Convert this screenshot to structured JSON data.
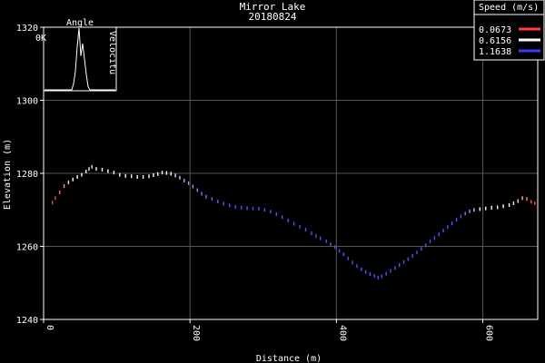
{
  "chart_data": {
    "type": "scatter",
    "title": "Mirror Lake",
    "subtitle": "20180824",
    "xlabel": "Distance (m)",
    "ylabel": "Elevation (m)",
    "xlim": [
      0,
      675
    ],
    "ylim": [
      1240,
      1320
    ],
    "x_ticks": [
      0,
      200,
      400,
      600
    ],
    "y_ticks": [
      1240,
      1260,
      1280,
      1300,
      1320
    ],
    "grid": true,
    "legend": {
      "title": "Speed (m/s)",
      "position": "top-right",
      "entries": [
        {
          "label": "0.0673",
          "color": "#ff3b3b"
        },
        {
          "label": "0.6156",
          "color": "#ffffff"
        },
        {
          "label": "1.1638",
          "color": "#3b3bff"
        }
      ]
    },
    "inset": {
      "title": "Angle",
      "left_label": "0K",
      "right_label": "Velocitu",
      "histogram": [
        0,
        0,
        0,
        0,
        0,
        0,
        0,
        0,
        0,
        0,
        0,
        0,
        0,
        0,
        0,
        0,
        0.1,
        0.3,
        0.7,
        1.0,
        0.55,
        0.75,
        0.5,
        0.25,
        0.05,
        0,
        0,
        0,
        0,
        0,
        0,
        0,
        0,
        0,
        0,
        0,
        0,
        0,
        0,
        0
      ]
    },
    "points": [
      {
        "x": 12,
        "y": 1272.0,
        "s": 0.07
      },
      {
        "x": 16,
        "y": 1273.2,
        "s": 0.1
      },
      {
        "x": 22,
        "y": 1274.8,
        "s": 0.2
      },
      {
        "x": 28,
        "y": 1276.5,
        "s": 0.35
      },
      {
        "x": 34,
        "y": 1277.5,
        "s": 0.5
      },
      {
        "x": 40,
        "y": 1278.3,
        "s": 0.6
      },
      {
        "x": 46,
        "y": 1279.0,
        "s": 0.6
      },
      {
        "x": 52,
        "y": 1279.6,
        "s": 0.62
      },
      {
        "x": 58,
        "y": 1280.5,
        "s": 0.62
      },
      {
        "x": 62,
        "y": 1281.2,
        "s": 0.55
      },
      {
        "x": 66,
        "y": 1281.8,
        "s": 0.5
      },
      {
        "x": 72,
        "y": 1281.2,
        "s": 0.6
      },
      {
        "x": 80,
        "y": 1281.0,
        "s": 0.62
      },
      {
        "x": 88,
        "y": 1280.6,
        "s": 0.62
      },
      {
        "x": 96,
        "y": 1280.2,
        "s": 0.62
      },
      {
        "x": 104,
        "y": 1279.6,
        "s": 0.62
      },
      {
        "x": 112,
        "y": 1279.3,
        "s": 0.62
      },
      {
        "x": 120,
        "y": 1279.2,
        "s": 0.62
      },
      {
        "x": 128,
        "y": 1279.0,
        "s": 0.62
      },
      {
        "x": 136,
        "y": 1279.0,
        "s": 0.62
      },
      {
        "x": 144,
        "y": 1279.2,
        "s": 0.62
      },
      {
        "x": 150,
        "y": 1279.5,
        "s": 0.62
      },
      {
        "x": 156,
        "y": 1279.8,
        "s": 0.62
      },
      {
        "x": 162,
        "y": 1280.2,
        "s": 0.62
      },
      {
        "x": 168,
        "y": 1280.1,
        "s": 0.62
      },
      {
        "x": 174,
        "y": 1279.9,
        "s": 0.62
      },
      {
        "x": 180,
        "y": 1279.4,
        "s": 0.7
      },
      {
        "x": 186,
        "y": 1278.8,
        "s": 0.8
      },
      {
        "x": 192,
        "y": 1278.0,
        "s": 0.85
      },
      {
        "x": 198,
        "y": 1277.3,
        "s": 0.9
      },
      {
        "x": 204,
        "y": 1276.4,
        "s": 0.9
      },
      {
        "x": 210,
        "y": 1275.4,
        "s": 0.95
      },
      {
        "x": 216,
        "y": 1274.4,
        "s": 1.0
      },
      {
        "x": 222,
        "y": 1273.6,
        "s": 1.0
      },
      {
        "x": 230,
        "y": 1273.0,
        "s": 1.05
      },
      {
        "x": 238,
        "y": 1272.3,
        "s": 1.05
      },
      {
        "x": 246,
        "y": 1271.7,
        "s": 1.1
      },
      {
        "x": 254,
        "y": 1271.2,
        "s": 1.1
      },
      {
        "x": 262,
        "y": 1270.8,
        "s": 1.1
      },
      {
        "x": 270,
        "y": 1270.6,
        "s": 1.1
      },
      {
        "x": 278,
        "y": 1270.5,
        "s": 1.1
      },
      {
        "x": 286,
        "y": 1270.4,
        "s": 1.1
      },
      {
        "x": 294,
        "y": 1270.3,
        "s": 1.1
      },
      {
        "x": 302,
        "y": 1270.0,
        "s": 1.1
      },
      {
        "x": 310,
        "y": 1269.5,
        "s": 1.1
      },
      {
        "x": 318,
        "y": 1268.8,
        "s": 1.1
      },
      {
        "x": 326,
        "y": 1268.0,
        "s": 1.1
      },
      {
        "x": 334,
        "y": 1267.1,
        "s": 1.1
      },
      {
        "x": 342,
        "y": 1266.2,
        "s": 1.1
      },
      {
        "x": 350,
        "y": 1265.4,
        "s": 1.1
      },
      {
        "x": 358,
        "y": 1264.6,
        "s": 1.1
      },
      {
        "x": 366,
        "y": 1263.6,
        "s": 1.1
      },
      {
        "x": 372,
        "y": 1262.8,
        "s": 1.1
      },
      {
        "x": 378,
        "y": 1262.2,
        "s": 1.1
      },
      {
        "x": 386,
        "y": 1261.4,
        "s": 1.1
      },
      {
        "x": 392,
        "y": 1260.6,
        "s": 1.1
      },
      {
        "x": 398,
        "y": 1259.8,
        "s": 1.1
      },
      {
        "x": 404,
        "y": 1258.8,
        "s": 1.1
      },
      {
        "x": 410,
        "y": 1257.8,
        "s": 1.1
      },
      {
        "x": 416,
        "y": 1256.7,
        "s": 1.1
      },
      {
        "x": 422,
        "y": 1255.6,
        "s": 1.1
      },
      {
        "x": 428,
        "y": 1254.6,
        "s": 1.1
      },
      {
        "x": 434,
        "y": 1253.7,
        "s": 1.1
      },
      {
        "x": 440,
        "y": 1253.0,
        "s": 1.1
      },
      {
        "x": 446,
        "y": 1252.4,
        "s": 1.1
      },
      {
        "x": 452,
        "y": 1251.9,
        "s": 1.1
      },
      {
        "x": 457,
        "y": 1251.4,
        "s": 1.1
      },
      {
        "x": 462,
        "y": 1251.8,
        "s": 1.1
      },
      {
        "x": 468,
        "y": 1252.5,
        "s": 1.1
      },
      {
        "x": 474,
        "y": 1253.3,
        "s": 1.1
      },
      {
        "x": 480,
        "y": 1254.1,
        "s": 1.1
      },
      {
        "x": 486,
        "y": 1254.9,
        "s": 1.1
      },
      {
        "x": 492,
        "y": 1255.7,
        "s": 1.1
      },
      {
        "x": 498,
        "y": 1256.5,
        "s": 1.1
      },
      {
        "x": 504,
        "y": 1257.4,
        "s": 1.1
      },
      {
        "x": 510,
        "y": 1258.3,
        "s": 1.1
      },
      {
        "x": 516,
        "y": 1259.3,
        "s": 1.1
      },
      {
        "x": 522,
        "y": 1260.3,
        "s": 1.1
      },
      {
        "x": 528,
        "y": 1261.3,
        "s": 1.1
      },
      {
        "x": 534,
        "y": 1262.3,
        "s": 1.1
      },
      {
        "x": 540,
        "y": 1263.3,
        "s": 1.1
      },
      {
        "x": 546,
        "y": 1264.3,
        "s": 1.1
      },
      {
        "x": 552,
        "y": 1265.3,
        "s": 1.1
      },
      {
        "x": 558,
        "y": 1266.3,
        "s": 1.1
      },
      {
        "x": 564,
        "y": 1267.3,
        "s": 1.1
      },
      {
        "x": 570,
        "y": 1268.2,
        "s": 1.1
      },
      {
        "x": 576,
        "y": 1269.0,
        "s": 1.0
      },
      {
        "x": 582,
        "y": 1269.6,
        "s": 0.9
      },
      {
        "x": 588,
        "y": 1270.0,
        "s": 0.8
      },
      {
        "x": 596,
        "y": 1270.2,
        "s": 0.62
      },
      {
        "x": 604,
        "y": 1270.4,
        "s": 0.62
      },
      {
        "x": 612,
        "y": 1270.6,
        "s": 0.62
      },
      {
        "x": 620,
        "y": 1270.7,
        "s": 0.62
      },
      {
        "x": 628,
        "y": 1271.0,
        "s": 0.62
      },
      {
        "x": 636,
        "y": 1271.3,
        "s": 0.62
      },
      {
        "x": 642,
        "y": 1271.8,
        "s": 0.55
      },
      {
        "x": 648,
        "y": 1272.4,
        "s": 0.5
      },
      {
        "x": 654,
        "y": 1273.2,
        "s": 0.4
      },
      {
        "x": 660,
        "y": 1273.0,
        "s": 0.25
      },
      {
        "x": 666,
        "y": 1272.2,
        "s": 0.12
      },
      {
        "x": 671,
        "y": 1271.8,
        "s": 0.07
      }
    ]
  }
}
